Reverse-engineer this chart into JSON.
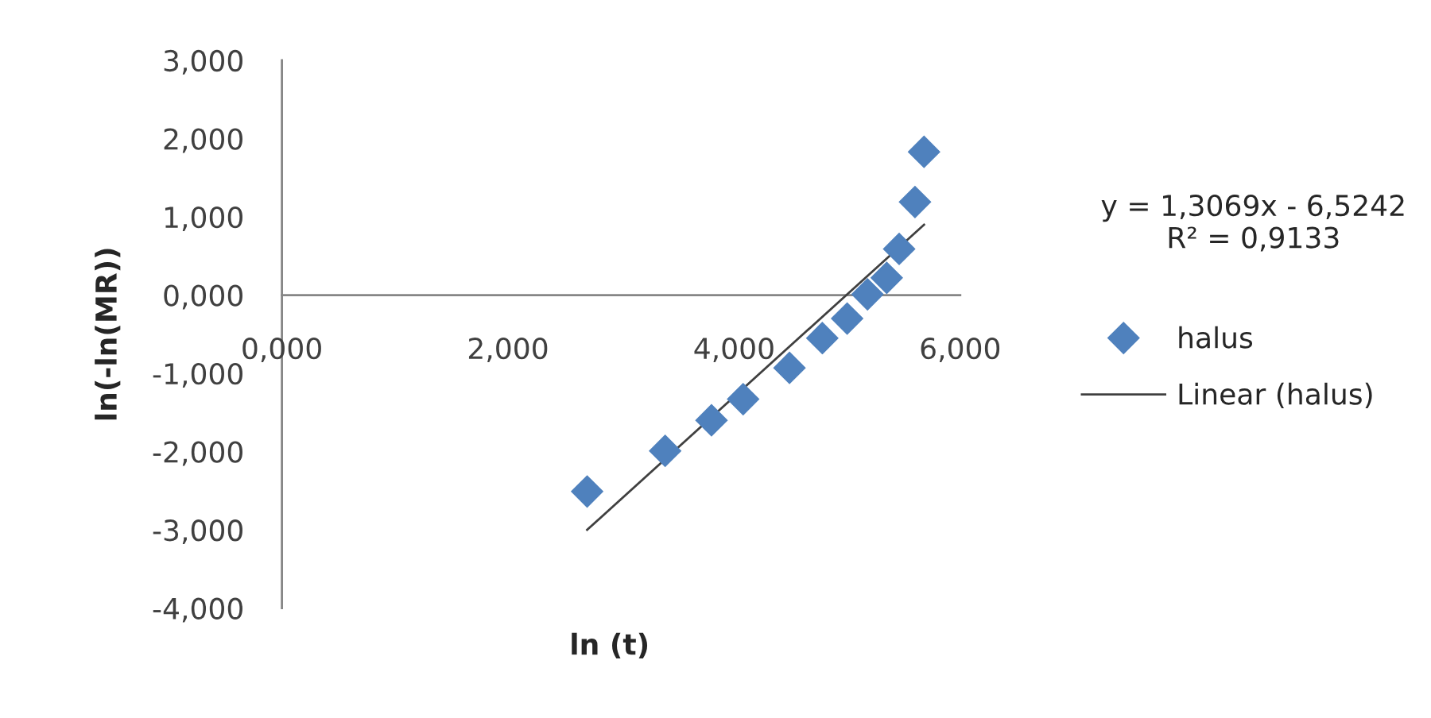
{
  "chart_data": {
    "type": "scatter",
    "xlabel": "ln (t)",
    "ylabel": "ln(-ln(MR))",
    "xlim": [
      0,
      6
    ],
    "ylim": [
      -4,
      3
    ],
    "xticks": [
      {
        "value": 0,
        "label": "0,000"
      },
      {
        "value": 2,
        "label": "2,000"
      },
      {
        "value": 4,
        "label": "4,000"
      },
      {
        "value": 6,
        "label": "6,000"
      }
    ],
    "yticks": [
      {
        "value": -4,
        "label": "-4,000"
      },
      {
        "value": -3,
        "label": "-3,000"
      },
      {
        "value": -2,
        "label": "-2,000"
      },
      {
        "value": -1,
        "label": "-1,000"
      },
      {
        "value": 0,
        "label": "0,000"
      },
      {
        "value": 1,
        "label": "1,000"
      },
      {
        "value": 2,
        "label": "2,000"
      },
      {
        "value": 3,
        "label": "3,000"
      }
    ],
    "grid": false,
    "legend": "right",
    "marker": "diamond",
    "series": [
      {
        "name": "halus",
        "color": "#4f81bd",
        "x": [
          2.7,
          3.39,
          3.8,
          4.08,
          4.49,
          4.78,
          5.0,
          5.18,
          5.35,
          5.46,
          5.6,
          5.68
        ],
        "values": [
          -2.51,
          -1.99,
          -1.6,
          -1.33,
          -0.93,
          -0.55,
          -0.3,
          0.01,
          0.22,
          0.59,
          1.19,
          1.83
        ]
      },
      {
        "name": "Linear (halus)",
        "type": "line",
        "color": "#404040",
        "marker": "none",
        "line_style": "solid",
        "x": [
          2.7,
          5.68
        ],
        "values": [
          -3.0,
          0.9
        ]
      }
    ],
    "annotations": [
      "y = 1,3069x - 6,5242\nR² = 0,9133"
    ]
  }
}
